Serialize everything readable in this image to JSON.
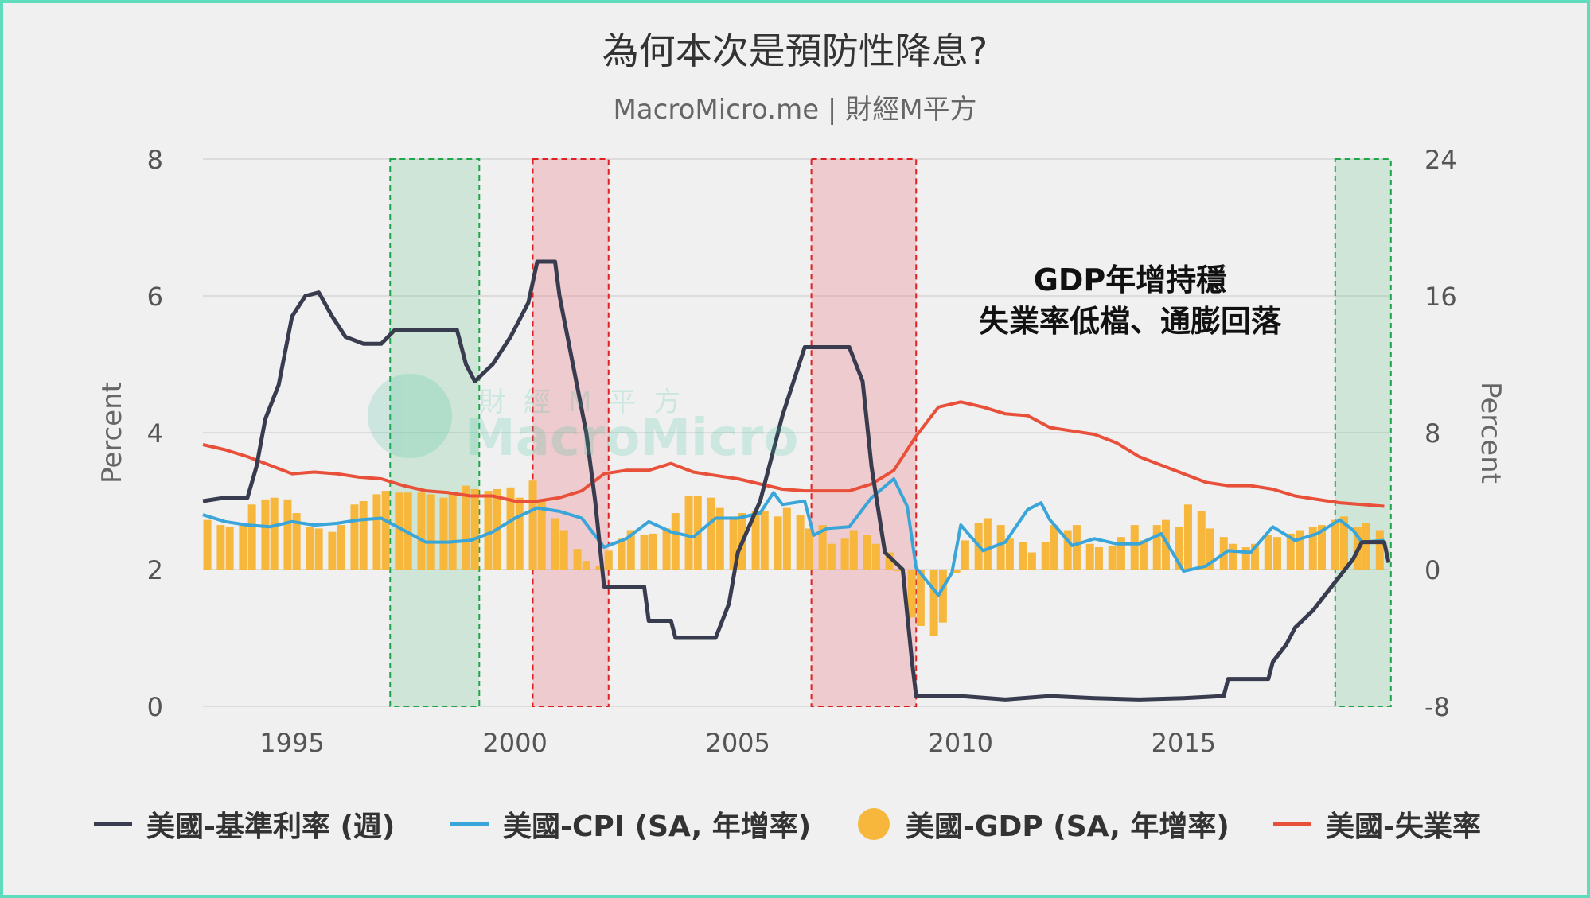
{
  "title": "為何本次是預防性降息?",
  "subtitle": "MacroMicro.me | 財經M平方",
  "annotation": {
    "line1": "GDP年增持穩",
    "line2": "失業率低檔、通膨回落"
  },
  "watermark": {
    "cn": "財經M平方",
    "en": "MacroMicro"
  },
  "legend": [
    {
      "label": "美國-基準利率 (週)",
      "color": "#383c4e",
      "shape": "line"
    },
    {
      "label": "美國-CPI (SA, 年增率)",
      "color": "#3aa5d8",
      "shape": "line"
    },
    {
      "label": "美國-GDP (SA, 年增率)",
      "color": "#f6b73c",
      "shape": "dot"
    },
    {
      "label": "美國-失業率",
      "color": "#e8503a",
      "shape": "line"
    }
  ],
  "chart_data": {
    "type": "line",
    "title": "為何本次是預防性降息?",
    "y_left": {
      "label": "Percent",
      "min": 0,
      "max": 8,
      "ticks": [
        0,
        2,
        4,
        6,
        8
      ]
    },
    "y_right": {
      "label": "Percent",
      "min": -8,
      "max": 24,
      "ticks": [
        -8,
        0,
        8,
        16,
        24
      ]
    },
    "x": {
      "min": 1993,
      "max": 2019.6,
      "ticks": [
        1995,
        2000,
        2005,
        2010,
        2015
      ]
    },
    "grid": true,
    "legend_position": "bottom",
    "shaded_regions": [
      {
        "from": 1997.2,
        "to": 1999.2,
        "color": "green"
      },
      {
        "from": 2000.4,
        "to": 2002.1,
        "color": "red"
      },
      {
        "from": 2006.65,
        "to": 2009.0,
        "color": "red"
      },
      {
        "from": 2018.4,
        "to": 2019.65,
        "color": "green"
      }
    ],
    "series": [
      {
        "name": "美國-基準利率 (週)",
        "axis": "left",
        "color": "#383c4e",
        "points": [
          [
            1993.0,
            3.0
          ],
          [
            1993.5,
            3.05
          ],
          [
            1994.0,
            3.05
          ],
          [
            1994.2,
            3.5
          ],
          [
            1994.4,
            4.2
          ],
          [
            1994.7,
            4.7
          ],
          [
            1995.0,
            5.7
          ],
          [
            1995.3,
            6.0
          ],
          [
            1995.6,
            6.05
          ],
          [
            1995.9,
            5.7
          ],
          [
            1996.2,
            5.4
          ],
          [
            1996.6,
            5.3
          ],
          [
            1997.0,
            5.3
          ],
          [
            1997.3,
            5.5
          ],
          [
            1997.8,
            5.5
          ],
          [
            1998.3,
            5.5
          ],
          [
            1998.7,
            5.5
          ],
          [
            1998.9,
            5.0
          ],
          [
            1999.1,
            4.75
          ],
          [
            1999.5,
            5.0
          ],
          [
            1999.9,
            5.4
          ],
          [
            2000.3,
            5.9
          ],
          [
            2000.5,
            6.5
          ],
          [
            2000.9,
            6.5
          ],
          [
            2001.0,
            6.0
          ],
          [
            2001.3,
            5.0
          ],
          [
            2001.6,
            4.0
          ],
          [
            2001.8,
            3.0
          ],
          [
            2002.0,
            1.75
          ],
          [
            2002.5,
            1.75
          ],
          [
            2002.9,
            1.75
          ],
          [
            2003.0,
            1.25
          ],
          [
            2003.5,
            1.25
          ],
          [
            2003.6,
            1.0
          ],
          [
            2004.5,
            1.0
          ],
          [
            2004.8,
            1.5
          ],
          [
            2005.0,
            2.25
          ],
          [
            2005.5,
            3.0
          ],
          [
            2006.0,
            4.25
          ],
          [
            2006.5,
            5.25
          ],
          [
            2007.5,
            5.25
          ],
          [
            2007.8,
            4.75
          ],
          [
            2008.0,
            3.5
          ],
          [
            2008.3,
            2.25
          ],
          [
            2008.7,
            2.0
          ],
          [
            2008.9,
            0.7
          ],
          [
            2009.0,
            0.15
          ],
          [
            2010.0,
            0.15
          ],
          [
            2011.0,
            0.1
          ],
          [
            2012.0,
            0.15
          ],
          [
            2013.0,
            0.12
          ],
          [
            2014.0,
            0.1
          ],
          [
            2015.0,
            0.12
          ],
          [
            2015.9,
            0.15
          ],
          [
            2016.0,
            0.4
          ],
          [
            2016.9,
            0.4
          ],
          [
            2017.0,
            0.65
          ],
          [
            2017.3,
            0.9
          ],
          [
            2017.5,
            1.15
          ],
          [
            2017.9,
            1.4
          ],
          [
            2018.2,
            1.65
          ],
          [
            2018.5,
            1.9
          ],
          [
            2018.8,
            2.15
          ],
          [
            2019.0,
            2.4
          ],
          [
            2019.5,
            2.4
          ],
          [
            2019.6,
            2.1
          ]
        ]
      },
      {
        "name": "美國-CPI (SA, 年增率)",
        "axis": "right",
        "color": "#3aa5d8",
        "points": [
          [
            1993.0,
            3.2
          ],
          [
            1993.5,
            2.8
          ],
          [
            1994.0,
            2.6
          ],
          [
            1994.5,
            2.5
          ],
          [
            1995.0,
            2.8
          ],
          [
            1995.5,
            2.6
          ],
          [
            1996.0,
            2.7
          ],
          [
            1996.5,
            2.9
          ],
          [
            1997.0,
            3.0
          ],
          [
            1997.5,
            2.3
          ],
          [
            1998.0,
            1.6
          ],
          [
            1998.5,
            1.6
          ],
          [
            1999.0,
            1.7
          ],
          [
            1999.5,
            2.2
          ],
          [
            2000.0,
            3.0
          ],
          [
            2000.5,
            3.6
          ],
          [
            2001.0,
            3.4
          ],
          [
            2001.5,
            3.0
          ],
          [
            2002.0,
            1.3
          ],
          [
            2002.5,
            1.8
          ],
          [
            2003.0,
            2.8
          ],
          [
            2003.5,
            2.2
          ],
          [
            2004.0,
            1.9
          ],
          [
            2004.5,
            3.0
          ],
          [
            2005.0,
            3.0
          ],
          [
            2005.5,
            3.3
          ],
          [
            2005.8,
            4.5
          ],
          [
            2006.0,
            3.8
          ],
          [
            2006.5,
            4.0
          ],
          [
            2006.7,
            2.0
          ],
          [
            2007.0,
            2.4
          ],
          [
            2007.5,
            2.5
          ],
          [
            2008.0,
            4.2
          ],
          [
            2008.5,
            5.3
          ],
          [
            2008.8,
            3.7
          ],
          [
            2009.0,
            0.1
          ],
          [
            2009.5,
            -1.5
          ],
          [
            2009.8,
            -0.2
          ],
          [
            2010.0,
            2.6
          ],
          [
            2010.5,
            1.1
          ],
          [
            2011.0,
            1.6
          ],
          [
            2011.5,
            3.5
          ],
          [
            2011.8,
            3.9
          ],
          [
            2012.0,
            2.9
          ],
          [
            2012.5,
            1.4
          ],
          [
            2013.0,
            1.8
          ],
          [
            2013.5,
            1.5
          ],
          [
            2014.0,
            1.5
          ],
          [
            2014.5,
            2.1
          ],
          [
            2015.0,
            -0.1
          ],
          [
            2015.5,
            0.2
          ],
          [
            2016.0,
            1.1
          ],
          [
            2016.5,
            1.0
          ],
          [
            2017.0,
            2.5
          ],
          [
            2017.5,
            1.7
          ],
          [
            2018.0,
            2.1
          ],
          [
            2018.5,
            2.9
          ],
          [
            2018.8,
            2.3
          ],
          [
            2019.0,
            1.6
          ],
          [
            2019.5,
            1.7
          ]
        ]
      },
      {
        "name": "美國-GDP (SA, 年增率)",
        "axis": "right",
        "color": "#f6b73c",
        "type": "bar",
        "points": [
          [
            1993.1,
            2.9
          ],
          [
            1993.4,
            2.6
          ],
          [
            1993.6,
            2.5
          ],
          [
            1993.9,
            2.7
          ],
          [
            1994.1,
            3.8
          ],
          [
            1994.4,
            4.1
          ],
          [
            1994.6,
            4.2
          ],
          [
            1994.9,
            4.1
          ],
          [
            1995.1,
            3.3
          ],
          [
            1995.4,
            2.5
          ],
          [
            1995.6,
            2.4
          ],
          [
            1995.9,
            2.2
          ],
          [
            1996.1,
            2.6
          ],
          [
            1996.4,
            3.8
          ],
          [
            1996.6,
            4.0
          ],
          [
            1996.9,
            4.4
          ],
          [
            1997.1,
            4.6
          ],
          [
            1997.4,
            4.5
          ],
          [
            1997.6,
            4.5
          ],
          [
            1997.9,
            4.5
          ],
          [
            1998.1,
            4.4
          ],
          [
            1998.4,
            4.2
          ],
          [
            1998.6,
            4.4
          ],
          [
            1998.9,
            4.9
          ],
          [
            1999.1,
            4.7
          ],
          [
            1999.4,
            4.6
          ],
          [
            1999.6,
            4.7
          ],
          [
            1999.9,
            4.8
          ],
          [
            2000.1,
            4.2
          ],
          [
            2000.4,
            5.2
          ],
          [
            2000.6,
            4.0
          ],
          [
            2000.9,
            3.0
          ],
          [
            2001.1,
            2.3
          ],
          [
            2001.4,
            1.2
          ],
          [
            2001.6,
            0.5
          ],
          [
            2001.9,
            0.2
          ],
          [
            2002.1,
            1.1
          ],
          [
            2002.4,
            1.8
          ],
          [
            2002.6,
            2.3
          ],
          [
            2002.9,
            2.0
          ],
          [
            2003.1,
            2.1
          ],
          [
            2003.4,
            2.4
          ],
          [
            2003.6,
            3.3
          ],
          [
            2003.9,
            4.3
          ],
          [
            2004.1,
            4.3
          ],
          [
            2004.4,
            4.2
          ],
          [
            2004.6,
            3.6
          ],
          [
            2004.9,
            3.1
          ],
          [
            2005.1,
            3.3
          ],
          [
            2005.4,
            3.4
          ],
          [
            2005.6,
            3.4
          ],
          [
            2005.9,
            3.1
          ],
          [
            2006.1,
            3.6
          ],
          [
            2006.4,
            3.2
          ],
          [
            2006.6,
            2.4
          ],
          [
            2006.9,
            2.6
          ],
          [
            2007.1,
            1.5
          ],
          [
            2007.4,
            1.8
          ],
          [
            2007.6,
            2.3
          ],
          [
            2007.9,
            2.0
          ],
          [
            2008.1,
            1.5
          ],
          [
            2008.4,
            1.0
          ],
          [
            2008.6,
            -0.1
          ],
          [
            2008.9,
            -2.8
          ],
          [
            2009.1,
            -3.3
          ],
          [
            2009.4,
            -3.9
          ],
          [
            2009.6,
            -3.1
          ],
          [
            2009.9,
            -0.2
          ],
          [
            2010.1,
            1.7
          ],
          [
            2010.4,
            2.7
          ],
          [
            2010.6,
            3.0
          ],
          [
            2010.9,
            2.6
          ],
          [
            2011.1,
            1.8
          ],
          [
            2011.4,
            1.6
          ],
          [
            2011.6,
            1.0
          ],
          [
            2011.9,
            1.6
          ],
          [
            2012.1,
            2.6
          ],
          [
            2012.4,
            2.3
          ],
          [
            2012.6,
            2.6
          ],
          [
            2012.9,
            1.5
          ],
          [
            2013.1,
            1.3
          ],
          [
            2013.4,
            1.4
          ],
          [
            2013.6,
            1.9
          ],
          [
            2013.9,
            2.6
          ],
          [
            2014.1,
            1.7
          ],
          [
            2014.4,
            2.6
          ],
          [
            2014.6,
            2.9
          ],
          [
            2014.9,
            2.5
          ],
          [
            2015.1,
            3.8
          ],
          [
            2015.4,
            3.4
          ],
          [
            2015.6,
            2.4
          ],
          [
            2015.9,
            1.9
          ],
          [
            2016.1,
            1.5
          ],
          [
            2016.4,
            1.3
          ],
          [
            2016.6,
            1.5
          ],
          [
            2016.9,
            2.0
          ],
          [
            2017.1,
            1.9
          ],
          [
            2017.4,
            2.1
          ],
          [
            2017.6,
            2.3
          ],
          [
            2017.9,
            2.5
          ],
          [
            2018.1,
            2.6
          ],
          [
            2018.4,
            2.9
          ],
          [
            2018.6,
            3.1
          ],
          [
            2018.9,
            2.5
          ],
          [
            2019.1,
            2.7
          ],
          [
            2019.4,
            2.3
          ]
        ]
      },
      {
        "name": "美國-失業率",
        "axis": "right",
        "color": "#e8503a",
        "points": [
          [
            1993.0,
            7.3
          ],
          [
            1993.5,
            7.0
          ],
          [
            1994.0,
            6.6
          ],
          [
            1994.5,
            6.1
          ],
          [
            1995.0,
            5.6
          ],
          [
            1995.5,
            5.7
          ],
          [
            1996.0,
            5.6
          ],
          [
            1996.5,
            5.4
          ],
          [
            1997.0,
            5.3
          ],
          [
            1997.5,
            4.9
          ],
          [
            1998.0,
            4.6
          ],
          [
            1998.5,
            4.5
          ],
          [
            1999.0,
            4.3
          ],
          [
            1999.5,
            4.3
          ],
          [
            2000.0,
            4.0
          ],
          [
            2000.5,
            4.0
          ],
          [
            2001.0,
            4.2
          ],
          [
            2001.5,
            4.6
          ],
          [
            2002.0,
            5.6
          ],
          [
            2002.5,
            5.8
          ],
          [
            2003.0,
            5.8
          ],
          [
            2003.5,
            6.2
          ],
          [
            2004.0,
            5.7
          ],
          [
            2004.5,
            5.5
          ],
          [
            2005.0,
            5.3
          ],
          [
            2005.5,
            5.0
          ],
          [
            2006.0,
            4.7
          ],
          [
            2006.5,
            4.6
          ],
          [
            2007.0,
            4.6
          ],
          [
            2007.5,
            4.6
          ],
          [
            2008.0,
            5.0
          ],
          [
            2008.5,
            5.8
          ],
          [
            2009.0,
            7.8
          ],
          [
            2009.5,
            9.5
          ],
          [
            2010.0,
            9.8
          ],
          [
            2010.5,
            9.5
          ],
          [
            2011.0,
            9.1
          ],
          [
            2011.5,
            9.0
          ],
          [
            2012.0,
            8.3
          ],
          [
            2012.5,
            8.1
          ],
          [
            2013.0,
            7.9
          ],
          [
            2013.5,
            7.4
          ],
          [
            2014.0,
            6.6
          ],
          [
            2014.5,
            6.1
          ],
          [
            2015.0,
            5.6
          ],
          [
            2015.5,
            5.1
          ],
          [
            2016.0,
            4.9
          ],
          [
            2016.5,
            4.9
          ],
          [
            2017.0,
            4.7
          ],
          [
            2017.5,
            4.3
          ],
          [
            2018.0,
            4.1
          ],
          [
            2018.5,
            3.9
          ],
          [
            2019.0,
            3.8
          ],
          [
            2019.5,
            3.7
          ]
        ]
      }
    ]
  }
}
